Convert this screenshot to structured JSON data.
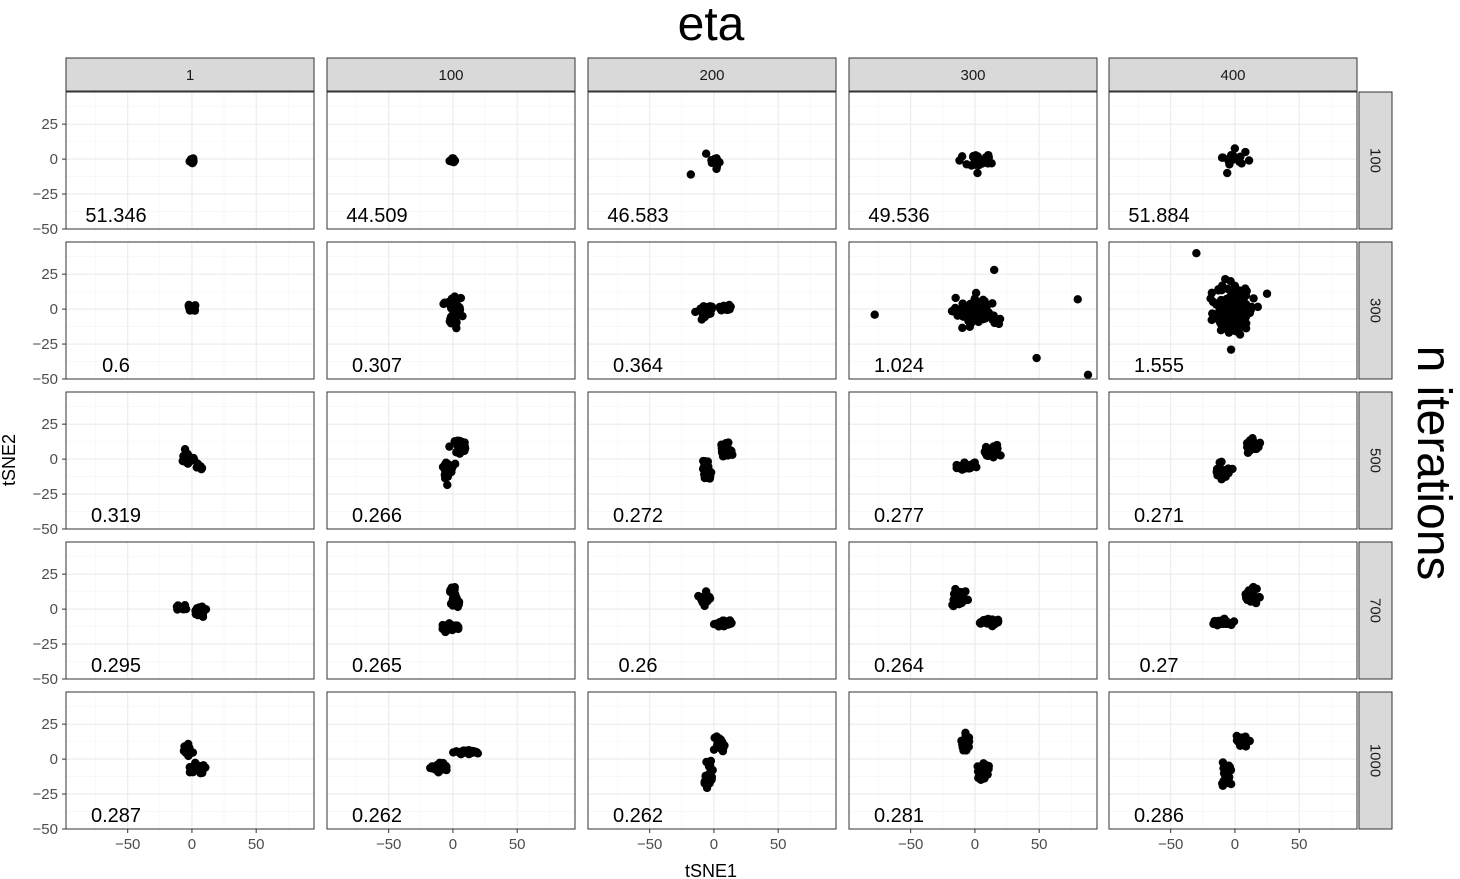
{
  "chart_data": {
    "type": "scatter",
    "facet_col_title": "eta",
    "facet_row_title": "n iterations",
    "xlabel": "tSNE1",
    "ylabel": "tSNE2",
    "xlim": [
      -98,
      95
    ],
    "ylim": [
      -50,
      48
    ],
    "x_ticks": [
      -50,
      0,
      50
    ],
    "y_ticks": [
      -50,
      -25,
      0,
      25
    ],
    "x_tick_labels": [
      "−50",
      "0",
      "50"
    ],
    "y_tick_labels": [
      "−50",
      "−25",
      "0",
      "25"
    ],
    "grid": true,
    "col_labels": [
      "1",
      "100",
      "200",
      "300",
      "400"
    ],
    "row_labels": [
      "100",
      "300",
      "500",
      "700",
      "1000"
    ],
    "panels": [
      {
        "row": "100",
        "col": "1",
        "annotation": "51.346",
        "clusters": [
          {
            "cx": 0,
            "cy": -1,
            "sx": 1,
            "sy": 1,
            "n": 14
          }
        ],
        "outliers": []
      },
      {
        "row": "100",
        "col": "100",
        "annotation": "44.509",
        "clusters": [
          {
            "cx": 0,
            "cy": -1,
            "sx": 1.2,
            "sy": 1,
            "n": 14
          }
        ],
        "outliers": []
      },
      {
        "row": "100",
        "col": "200",
        "annotation": "46.583",
        "clusters": [
          {
            "cx": 0,
            "cy": -1,
            "sx": 2.5,
            "sy": 2.5,
            "n": 12
          }
        ],
        "outliers": [
          [
            -18,
            -11
          ],
          [
            2,
            -7
          ]
        ]
      },
      {
        "row": "100",
        "col": "300",
        "annotation": "49.536",
        "clusters": [
          {
            "cx": 1,
            "cy": 0,
            "sx": 5,
            "sy": 3,
            "n": 18
          }
        ],
        "outliers": [
          [
            -12,
            -1
          ],
          [
            13,
            -3
          ],
          [
            2,
            -10
          ]
        ]
      },
      {
        "row": "100",
        "col": "400",
        "annotation": "51.884",
        "clusters": [
          {
            "cx": 0,
            "cy": 0,
            "sx": 4,
            "sy": 3,
            "n": 18
          }
        ],
        "outliers": [
          [
            -10,
            1
          ],
          [
            11,
            -1
          ],
          [
            -6,
            -10
          ]
        ]
      },
      {
        "row": "300",
        "col": "1",
        "annotation": "0.6",
        "clusters": [
          {
            "cx": 0,
            "cy": 1,
            "sx": 2,
            "sy": 1.5,
            "n": 22
          }
        ],
        "outliers": []
      },
      {
        "row": "300",
        "col": "100",
        "annotation": "0.307",
        "clusters": [
          {
            "cx": 0,
            "cy": 4,
            "sx": 3,
            "sy": 2.5,
            "n": 30
          },
          {
            "cx": 1,
            "cy": -7,
            "sx": 2,
            "sy": 2.5,
            "n": 22
          }
        ],
        "outliers": []
      },
      {
        "row": "300",
        "col": "200",
        "annotation": "0.364",
        "clusters": [
          {
            "cx": -6,
            "cy": -1,
            "sx": 3,
            "sy": 2.5,
            "n": 30
          },
          {
            "cx": 8,
            "cy": 1,
            "sx": 3,
            "sy": 1.5,
            "n": 18
          }
        ],
        "outliers": []
      },
      {
        "row": "300",
        "col": "300",
        "annotation": "1.024",
        "clusters": [
          {
            "cx": 2,
            "cy": -2,
            "sx": 8,
            "sy": 5,
            "n": 80
          }
        ],
        "outliers": [
          [
            -78,
            -4
          ],
          [
            80,
            7
          ],
          [
            48,
            -35
          ],
          [
            88,
            -47
          ],
          [
            15,
            28
          ],
          [
            -15,
            8
          ]
        ]
      },
      {
        "row": "300",
        "col": "400",
        "annotation": "1.555",
        "clusters": [
          {
            "cx": 0,
            "cy": -1,
            "sx": 7,
            "sy": 8,
            "n": 220
          }
        ],
        "outliers": [
          [
            -30,
            40
          ],
          [
            25,
            11
          ],
          [
            -3,
            -29
          ]
        ]
      },
      {
        "row": "500",
        "col": "1",
        "annotation": "0.319",
        "clusters": [
          {
            "cx": -4,
            "cy": 1,
            "sx": 2,
            "sy": 2,
            "n": 24
          },
          {
            "cx": 6,
            "cy": -6,
            "sx": 1.5,
            "sy": 1.5,
            "n": 8
          }
        ],
        "outliers": []
      },
      {
        "row": "500",
        "col": "100",
        "annotation": "0.266",
        "clusters": [
          {
            "cx": 6,
            "cy": 9,
            "sx": 3,
            "sy": 2.5,
            "n": 34
          },
          {
            "cx": -4,
            "cy": -7,
            "sx": 2,
            "sy": 3.5,
            "n": 22
          }
        ],
        "outliers": []
      },
      {
        "row": "500",
        "col": "200",
        "annotation": "0.272",
        "clusters": [
          {
            "cx": 9,
            "cy": 7,
            "sx": 2.5,
            "sy": 2.5,
            "n": 30
          },
          {
            "cx": -6,
            "cy": -7,
            "sx": 1.8,
            "sy": 3.5,
            "n": 20
          }
        ],
        "outliers": []
      },
      {
        "row": "500",
        "col": "300",
        "annotation": "0.277",
        "clusters": [
          {
            "cx": 13,
            "cy": 5,
            "sx": 3,
            "sy": 2,
            "n": 34
          },
          {
            "cx": -6,
            "cy": -5,
            "sx": 5,
            "sy": 1.6,
            "n": 26
          }
        ],
        "outliers": []
      },
      {
        "row": "500",
        "col": "400",
        "annotation": "0.271",
        "clusters": [
          {
            "cx": 14,
            "cy": 10,
            "sx": 2.5,
            "sy": 2.2,
            "n": 28
          },
          {
            "cx": -9,
            "cy": -8,
            "sx": 2.5,
            "sy": 3.5,
            "n": 24
          }
        ],
        "outliers": []
      },
      {
        "row": "700",
        "col": "1",
        "annotation": "0.295",
        "clusters": [
          {
            "cx": -8,
            "cy": 1,
            "sx": 3,
            "sy": 1,
            "n": 18
          },
          {
            "cx": 6,
            "cy": -2,
            "sx": 2.2,
            "sy": 1.8,
            "n": 24
          }
        ],
        "outliers": []
      },
      {
        "row": "700",
        "col": "100",
        "annotation": "0.265",
        "clusters": [
          {
            "cx": 0,
            "cy": 14,
            "sx": 1.5,
            "sy": 2,
            "n": 16
          },
          {
            "cx": 2,
            "cy": 5,
            "sx": 1.5,
            "sy": 2,
            "n": 16
          },
          {
            "cx": -2,
            "cy": -13,
            "sx": 4,
            "sy": 1.2,
            "n": 30
          }
        ],
        "outliers": []
      },
      {
        "row": "700",
        "col": "200",
        "annotation": "0.26",
        "clusters": [
          {
            "cx": -7,
            "cy": 7,
            "sx": 2.5,
            "sy": 2,
            "n": 32
          },
          {
            "cx": 8,
            "cy": -10,
            "sx": 4,
            "sy": 1.2,
            "n": 30
          }
        ],
        "outliers": []
      },
      {
        "row": "700",
        "col": "300",
        "annotation": "0.264",
        "clusters": [
          {
            "cx": -12,
            "cy": 7,
            "sx": 2.5,
            "sy": 3,
            "n": 34
          },
          {
            "cx": 12,
            "cy": -9,
            "sx": 4,
            "sy": 1.2,
            "n": 30
          }
        ],
        "outliers": []
      },
      {
        "row": "700",
        "col": "400",
        "annotation": "0.27",
        "clusters": [
          {
            "cx": 12,
            "cy": 10,
            "sx": 2.5,
            "sy": 2.5,
            "n": 32
          },
          {
            "cx": -11,
            "cy": -10,
            "sx": 4,
            "sy": 1.3,
            "n": 28
          }
        ],
        "outliers": []
      },
      {
        "row": "1000",
        "col": "1",
        "annotation": "0.287",
        "clusters": [
          {
            "cx": -3,
            "cy": 6,
            "sx": 1.8,
            "sy": 2.5,
            "n": 24
          },
          {
            "cx": 5,
            "cy": -6,
            "sx": 3,
            "sy": 1.5,
            "n": 28
          }
        ],
        "outliers": []
      },
      {
        "row": "1000",
        "col": "100",
        "annotation": "0.262",
        "clusters": [
          {
            "cx": -11,
            "cy": -6,
            "sx": 3,
            "sy": 1.5,
            "n": 30
          },
          {
            "cx": 10,
            "cy": 5,
            "sx": 4.5,
            "sy": 1,
            "n": 32
          }
        ],
        "outliers": []
      },
      {
        "row": "1000",
        "col": "200",
        "annotation": "0.262",
        "clusters": [
          {
            "cx": 5,
            "cy": 11,
            "sx": 2,
            "sy": 2.5,
            "n": 30
          },
          {
            "cx": -4,
            "cy": -11,
            "sx": 1.6,
            "sy": 4,
            "n": 26
          }
        ],
        "outliers": []
      },
      {
        "row": "1000",
        "col": "300",
        "annotation": "0.281",
        "clusters": [
          {
            "cx": -7,
            "cy": 11,
            "sx": 1.8,
            "sy": 3,
            "n": 28
          },
          {
            "cx": 7,
            "cy": -10,
            "sx": 2.5,
            "sy": 3,
            "n": 28
          }
        ],
        "outliers": []
      },
      {
        "row": "1000",
        "col": "400",
        "annotation": "0.286",
        "clusters": [
          {
            "cx": 5,
            "cy": 13,
            "sx": 2.5,
            "sy": 2.2,
            "n": 28
          },
          {
            "cx": -6,
            "cy": -11,
            "sx": 2,
            "sy": 4,
            "n": 28
          }
        ],
        "outliers": []
      }
    ]
  }
}
